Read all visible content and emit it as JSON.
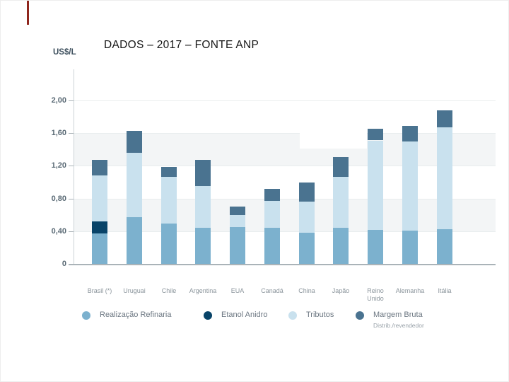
{
  "slide": {
    "accent_color": "#8f261d"
  },
  "colors": {
    "band": "#f3f5f6",
    "grid": "#e9edee",
    "axis_line": "#aab3b8",
    "y_axis_line": "#ccd3d7",
    "tick_mark": "#a8b1b6",
    "tick_text": "#5a6a75",
    "category_text": "#8b959c",
    "legend_text": "#6b7681",
    "legend_subtext": "#99a2a9",
    "title_text": "#161616",
    "unit_text": "#3d4f5d"
  },
  "chart_data": {
    "type": "bar",
    "stacked": true,
    "title": "DADOS – 2017 – FONTE ANP",
    "ylabel": "US$/L",
    "xlabel": "",
    "ylim": [
      0,
      2.25
    ],
    "grid": "horizontal-bands",
    "band_ranges": [
      [
        0.4,
        0.8
      ],
      [
        1.2,
        1.6
      ]
    ],
    "yticks": [
      0,
      0.4,
      0.8,
      1.2,
      1.6,
      2.0
    ],
    "ytick_labels": [
      "0",
      "0,40",
      "0,80",
      "1,20",
      "1,60",
      "2,00"
    ],
    "categories": [
      "Brasil (*)",
      "Uruguai",
      "Chile",
      "Argentina",
      "EUA",
      "Canadá",
      "China",
      "Japão",
      "Reino Unido",
      "Alemanha",
      "Itália"
    ],
    "series": [
      {
        "key": "realizacao-refinaria",
        "name": "Realização Refinaria",
        "color": "#7cb1ce",
        "values": [
          0.37,
          0.57,
          0.49,
          0.44,
          0.45,
          0.44,
          0.38,
          0.44,
          0.42,
          0.41,
          0.42
        ]
      },
      {
        "key": "etanol-anidro",
        "name": "Etanol Anidro",
        "color": "#084368",
        "values": [
          0.15,
          0,
          0,
          0,
          0,
          0,
          0,
          0,
          0,
          0,
          0
        ]
      },
      {
        "key": "tributos",
        "name": "Tributos",
        "color": "#c9e1ee",
        "values": [
          0.56,
          0.79,
          0.58,
          0.51,
          0.15,
          0.33,
          0.39,
          0.63,
          1.09,
          1.09,
          1.25
        ]
      },
      {
        "key": "margem-bruta",
        "name": "Margem Bruta",
        "color": "#4a7390",
        "values": [
          0.19,
          0.27,
          0.12,
          0.32,
          0.1,
          0.15,
          0.23,
          0.24,
          0.14,
          0.19,
          0.21
        ]
      }
    ],
    "totals": [
      1.27,
      1.63,
      1.19,
      1.27,
      0.7,
      0.92,
      1.0,
      1.31,
      1.65,
      1.69,
      1.88
    ],
    "legend_position": "bottom",
    "legend": [
      {
        "label": "Realização Refinaria",
        "sublabel": ""
      },
      {
        "label": "Etanol Anidro",
        "sublabel": ""
      },
      {
        "label": "Tributos",
        "sublabel": ""
      },
      {
        "label": "Margem Bruta",
        "sublabel": "Distrib./revendedor"
      }
    ]
  }
}
